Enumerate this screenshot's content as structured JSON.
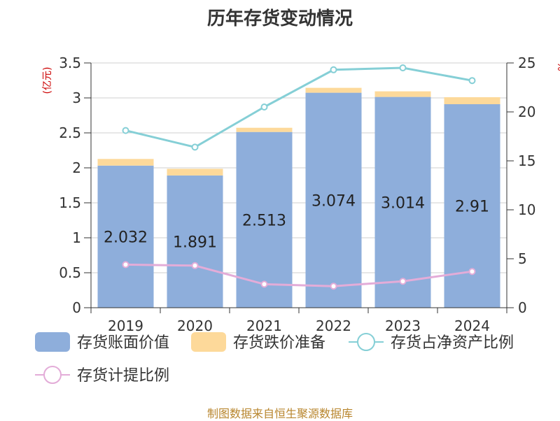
{
  "title": "历年存货变动情况",
  "source": "制图数据来自恒生聚源数据库",
  "colors": {
    "book": "#8eaedb",
    "reserve": "#fdd99a",
    "net_ratio": "#85cfd6",
    "provision_ratio": "#e3acd8",
    "axis_unit": "#cc0000",
    "source": "#b8862e"
  },
  "chart_data": {
    "type": "bar",
    "title": "历年存货变动情况",
    "categories": [
      "2019",
      "2020",
      "2021",
      "2022",
      "2023",
      "2024"
    ],
    "y_left": {
      "label": "(亿元)",
      "min": 0,
      "max": 3.5,
      "ticks": [
        "0",
        "0.5",
        "1",
        "1.5",
        "2",
        "2.5",
        "3",
        "3.5"
      ]
    },
    "y_right": {
      "label": "%",
      "min": 0,
      "max": 25,
      "ticks": [
        "0",
        "5",
        "10",
        "15",
        "20",
        "25"
      ]
    },
    "series": [
      {
        "name": "存货账面价值",
        "kind": "bar",
        "axis": "left",
        "values": [
          2.032,
          1.891,
          2.513,
          3.074,
          3.014,
          2.91
        ],
        "labels": [
          "2.032",
          "1.891",
          "2.513",
          "3.074",
          "3.014",
          "2.91"
        ]
      },
      {
        "name": "存货跌价准备",
        "kind": "bar-stack",
        "axis": "left",
        "values": [
          0.095,
          0.095,
          0.06,
          0.07,
          0.08,
          0.1
        ]
      },
      {
        "name": "存货占净资产比例",
        "kind": "line",
        "axis": "right",
        "values": [
          18.1,
          16.4,
          20.5,
          24.3,
          24.5,
          23.2
        ]
      },
      {
        "name": "存货计提比例",
        "kind": "line",
        "axis": "right",
        "values": [
          4.4,
          4.3,
          2.4,
          2.2,
          2.7,
          3.7
        ]
      }
    ],
    "grid": true,
    "legend_position": "bottom"
  }
}
